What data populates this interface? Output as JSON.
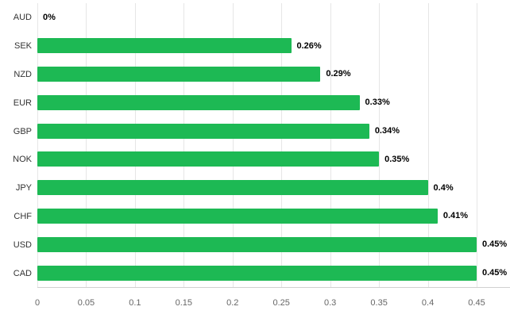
{
  "chart_data": {
    "type": "bar",
    "orientation": "horizontal",
    "title": "",
    "xlabel": "",
    "ylabel": "",
    "categories": [
      "AUD",
      "SEK",
      "NZD",
      "EUR",
      "GBP",
      "NOK",
      "JPY",
      "CHF",
      "USD",
      "CAD"
    ],
    "values": [
      0,
      0.26,
      0.29,
      0.33,
      0.34,
      0.35,
      0.4,
      0.41,
      0.45,
      0.45
    ],
    "value_labels": [
      "0%",
      "0.26%",
      "0.29%",
      "0.33%",
      "0.34%",
      "0.35%",
      "0.4%",
      "0.41%",
      "0.45%",
      "0.45%"
    ],
    "x_ticks": [
      0,
      0.05,
      0.1,
      0.15,
      0.2,
      0.25,
      0.3,
      0.35,
      0.4,
      0.45
    ],
    "x_tick_labels": [
      "0",
      "0.05",
      "0.1",
      "0.15",
      "0.2",
      "0.25",
      "0.3",
      "0.35",
      "0.4",
      "0.45"
    ],
    "xlim": [
      0,
      0.45
    ],
    "grid": "vertical",
    "legend": "none",
    "bar_color": "#1db954",
    "label_color": "#000000",
    "axis_text_color": "#666666",
    "gridline_color": "#e6e6e6"
  }
}
